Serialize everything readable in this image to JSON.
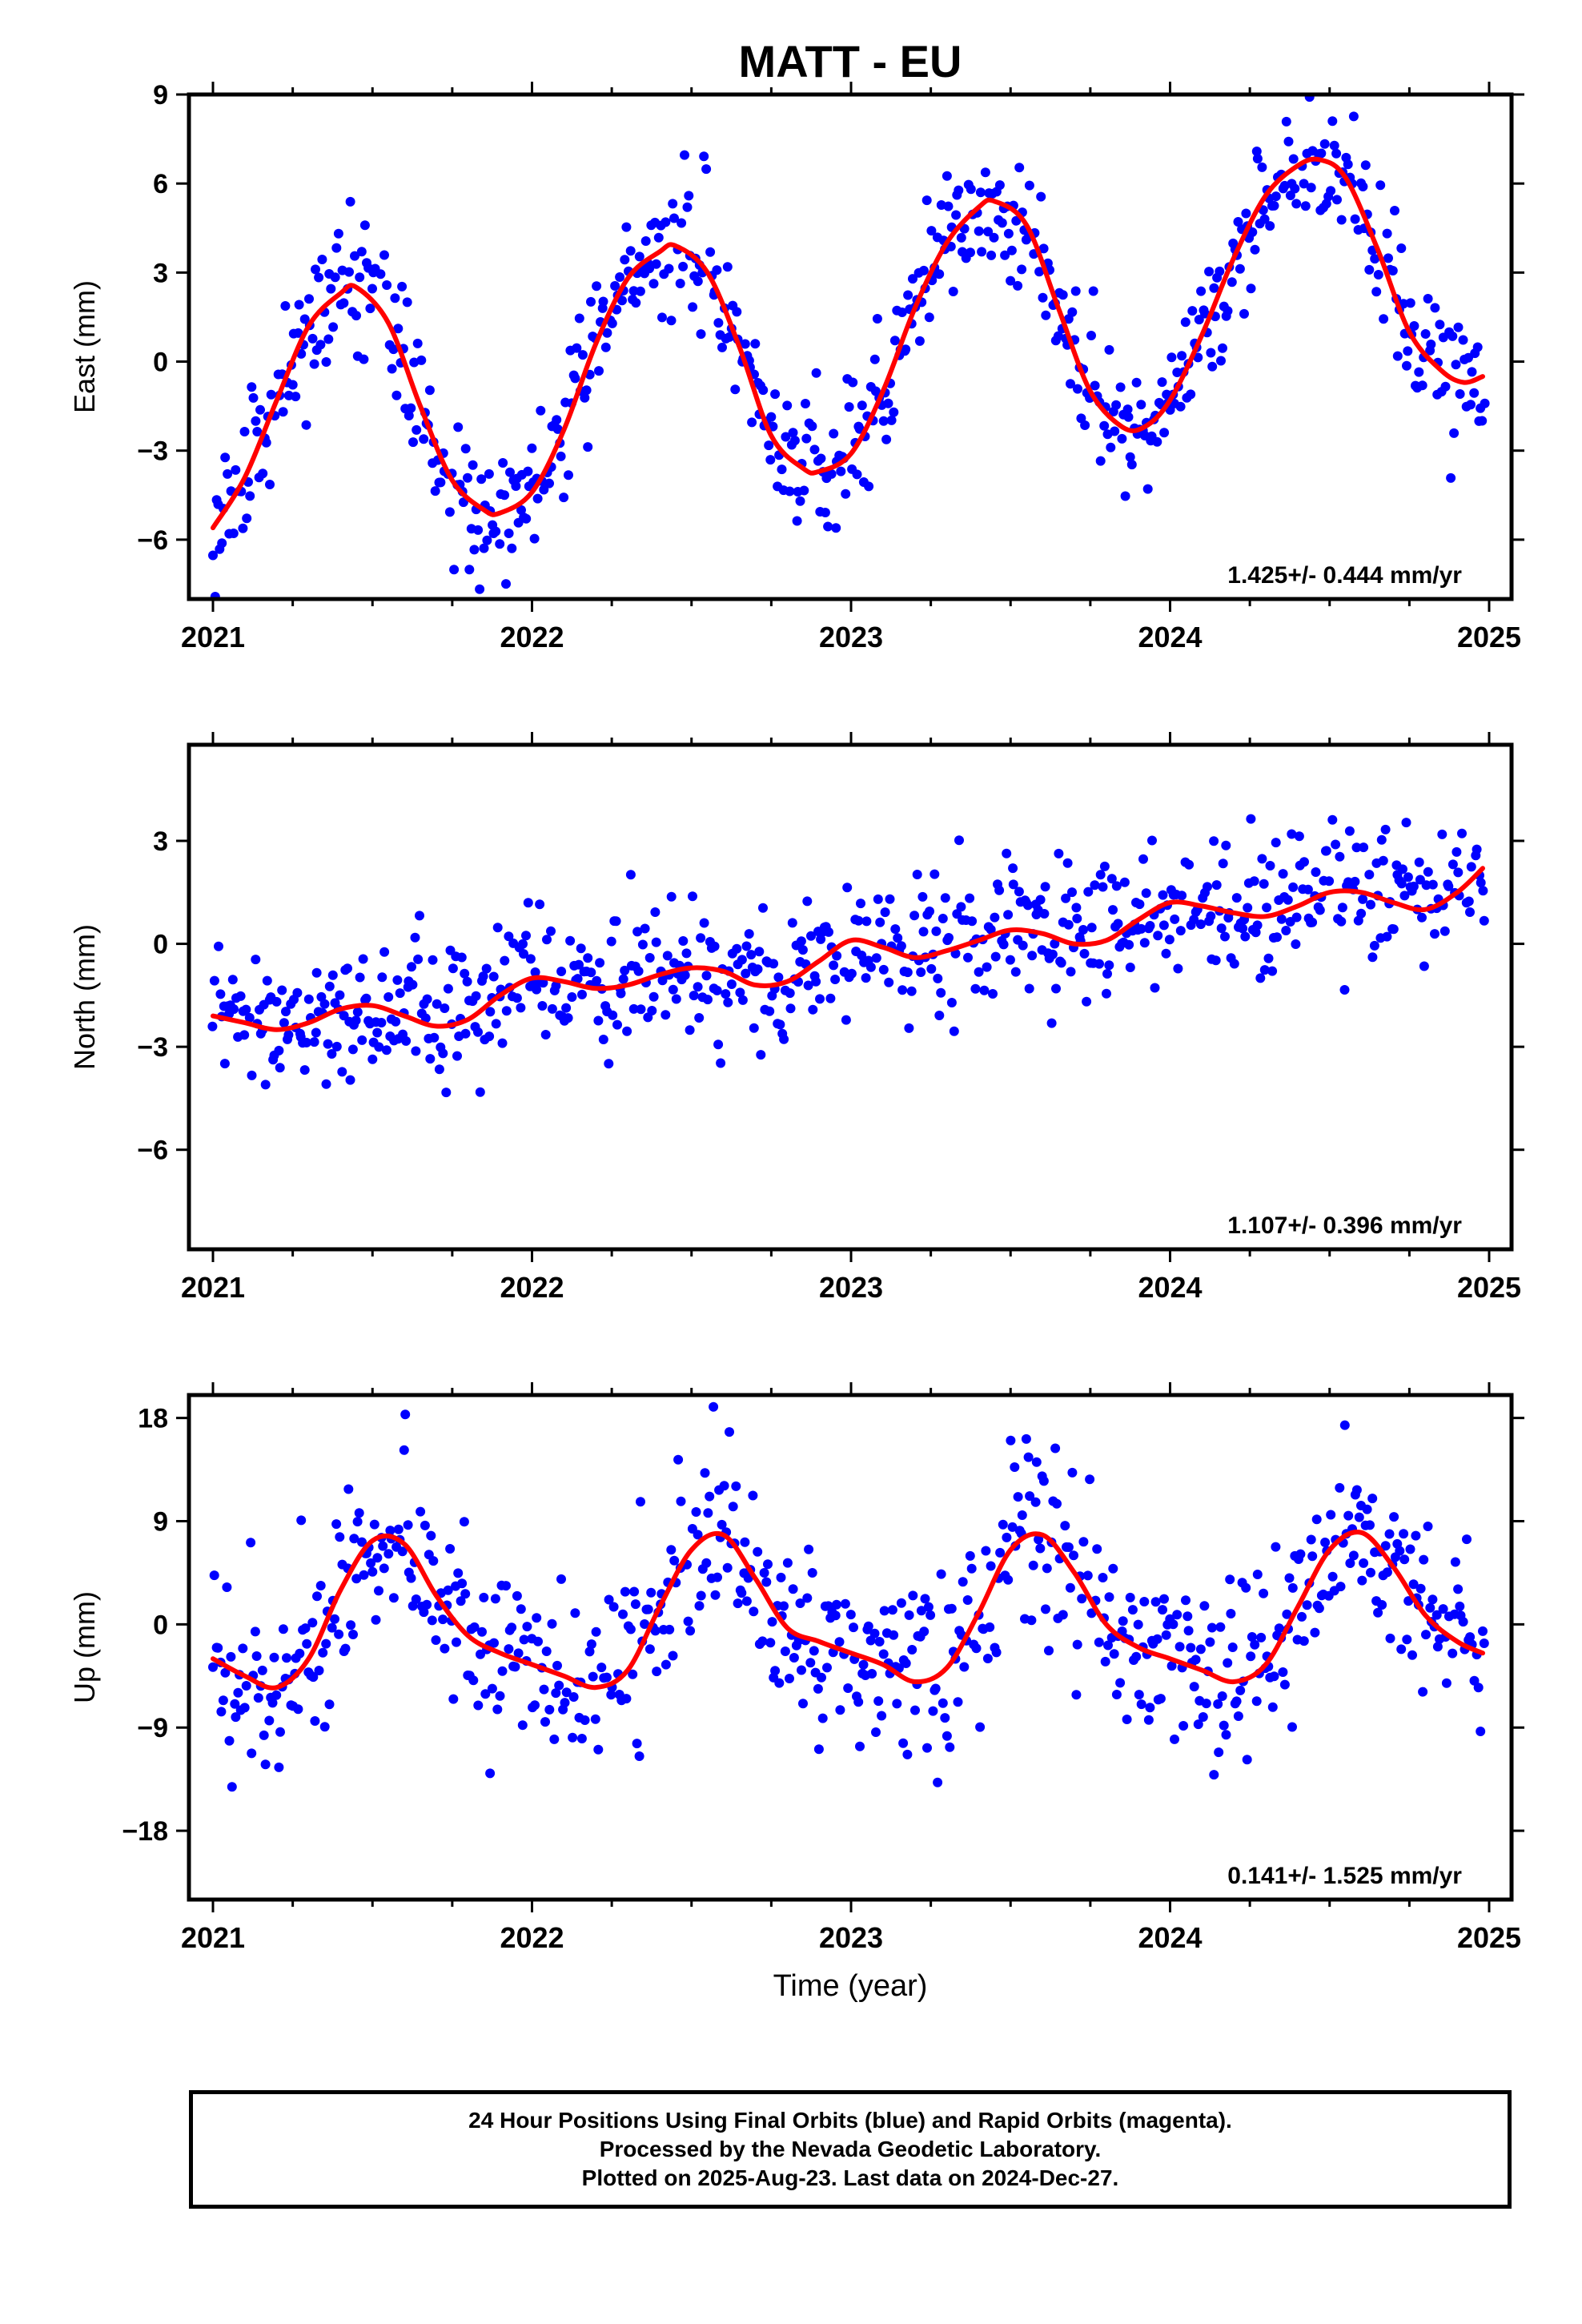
{
  "chart_data": {
    "title": "MATT - EU",
    "xlabel": "Time (year)",
    "x_ticks": [
      "2021",
      "2022",
      "2023",
      "2024",
      "2025"
    ],
    "xlim": [
      2021.0,
      2025.0
    ],
    "colors": {
      "points": "#0000ff",
      "fit": "#ff0000",
      "axes": "#000000"
    },
    "panels": [
      {
        "type": "scatter",
        "ylabel": "East (mm)",
        "yticks": [
          "9",
          "6",
          "3",
          "0",
          "−3",
          "−6"
        ],
        "ylim": [
          -8,
          9
        ],
        "rate": "1.425+/- 0.444 mm/yr",
        "trend": {
          "slope": 1.425,
          "mean": 0.0
        },
        "fit": {
          "x": [
            2021.0,
            2021.1,
            2021.2,
            2021.3,
            2021.4,
            2021.45,
            2021.55,
            2021.65,
            2021.75,
            2021.85,
            2021.9,
            2022.0,
            2022.1,
            2022.2,
            2022.3,
            2022.4,
            2022.45,
            2022.55,
            2022.65,
            2022.75,
            2022.85,
            2022.9,
            2023.0,
            2023.1,
            2023.2,
            2023.3,
            2023.4,
            2023.45,
            2023.55,
            2023.65,
            2023.75,
            2023.85,
            2023.92,
            2024.0,
            2024.1,
            2024.2,
            2024.3,
            2024.4,
            2024.47,
            2024.55,
            2024.65,
            2024.75,
            2024.85,
            2024.92,
            2024.98
          ],
          "y": [
            -5.6,
            -3.9,
            -1.3,
            1.2,
            2.3,
            2.5,
            1.3,
            -1.5,
            -4.0,
            -5.0,
            -5.1,
            -4.4,
            -2.3,
            0.6,
            2.8,
            3.7,
            3.9,
            3.0,
            0.5,
            -2.5,
            -3.6,
            -3.7,
            -3.1,
            -1.0,
            1.8,
            4.0,
            5.2,
            5.4,
            4.6,
            1.8,
            -1.0,
            -2.2,
            -2.2,
            -1.3,
            0.9,
            3.5,
            5.6,
            6.6,
            6.8,
            6.2,
            3.8,
            1.0,
            -0.3,
            -0.7,
            -0.5
          ]
        },
        "seed": 11,
        "sigma": 1.3
      },
      {
        "type": "scatter",
        "ylabel": "North (mm)",
        "yticks": [
          "3",
          "0",
          "−3",
          "−6"
        ],
        "ylim": [
          -8.9,
          5.8
        ],
        "rate": "1.107+/- 0.396 mm/yr",
        "trend": {
          "slope": 1.107,
          "mean": -0.2
        },
        "fit": {
          "x": [
            2021.0,
            2021.1,
            2021.2,
            2021.3,
            2021.4,
            2021.5,
            2021.6,
            2021.7,
            2021.8,
            2021.9,
            2022.0,
            2022.1,
            2022.2,
            2022.3,
            2022.4,
            2022.5,
            2022.6,
            2022.7,
            2022.8,
            2022.9,
            2023.0,
            2023.1,
            2023.2,
            2023.3,
            2023.4,
            2023.5,
            2023.6,
            2023.7,
            2023.8,
            2023.9,
            2024.0,
            2024.1,
            2024.2,
            2024.3,
            2024.4,
            2024.5,
            2024.6,
            2024.7,
            2024.8,
            2024.9,
            2024.98
          ],
          "y": [
            -2.1,
            -2.3,
            -2.5,
            -2.3,
            -1.9,
            -1.8,
            -2.1,
            -2.4,
            -2.2,
            -1.5,
            -1.0,
            -1.1,
            -1.3,
            -1.2,
            -0.9,
            -0.7,
            -0.8,
            -1.2,
            -1.1,
            -0.5,
            0.1,
            -0.1,
            -0.4,
            -0.2,
            0.1,
            0.4,
            0.3,
            0.0,
            0.1,
            0.7,
            1.2,
            1.1,
            0.9,
            0.8,
            1.1,
            1.5,
            1.5,
            1.2,
            1.0,
            1.5,
            2.2
          ]
        },
        "seed": 23,
        "sigma": 1.1
      },
      {
        "type": "scatter",
        "ylabel": "Up (mm)",
        "yticks": [
          "18",
          "9",
          "0",
          "−9",
          "−18"
        ],
        "ylim": [
          -24,
          20
        ],
        "rate": "0.141+/- 1.525 mm/yr",
        "trend": {
          "slope": 0.141,
          "mean": 0.0
        },
        "fit": {
          "x": [
            2021.0,
            2021.1,
            2021.2,
            2021.3,
            2021.4,
            2021.5,
            2021.6,
            2021.7,
            2021.8,
            2021.9,
            2022.0,
            2022.1,
            2022.2,
            2022.3,
            2022.4,
            2022.5,
            2022.6,
            2022.7,
            2022.8,
            2022.9,
            2023.0,
            2023.1,
            2023.2,
            2023.3,
            2023.4,
            2023.5,
            2023.6,
            2023.7,
            2023.8,
            2023.9,
            2024.0,
            2024.1,
            2024.2,
            2024.3,
            2024.4,
            2024.5,
            2024.6,
            2024.7,
            2024.8,
            2024.9,
            2024.98
          ],
          "y": [
            -3.0,
            -4.5,
            -5.5,
            -3.0,
            3.0,
            7.3,
            7.0,
            2.5,
            -1.0,
            -2.5,
            -3.5,
            -4.5,
            -5.5,
            -4.0,
            1.5,
            6.5,
            7.8,
            4.0,
            -0.3,
            -1.5,
            -2.5,
            -3.5,
            -5.0,
            -3.8,
            1.0,
            6.5,
            7.8,
            4.5,
            0.0,
            -2.0,
            -3.0,
            -4.0,
            -5.0,
            -3.5,
            1.5,
            6.5,
            8.0,
            5.0,
            0.8,
            -1.5,
            -2.5
          ]
        },
        "seed": 37,
        "sigma": 4.8
      }
    ]
  },
  "footer": {
    "line1": "24 Hour Positions Using Final Orbits (blue) and Rapid Orbits (magenta).",
    "line2": "Processed by the Nevada Geodetic Laboratory.",
    "line3": "Plotted on 2025-Aug-23. Last data on 2024-Dec-27."
  }
}
